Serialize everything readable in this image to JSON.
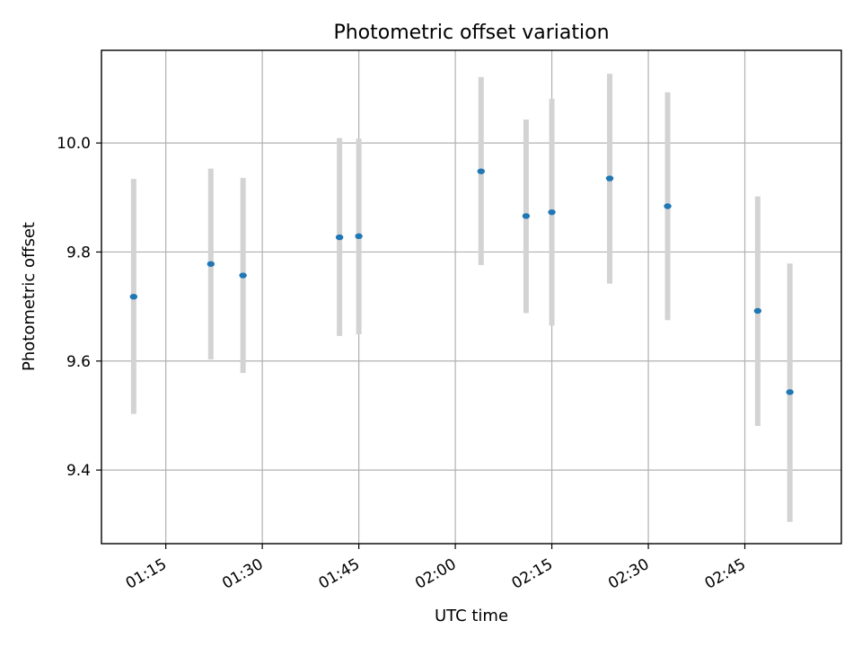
{
  "chart_data": {
    "type": "scatter",
    "title": "Photometric offset variation",
    "xlabel": "UTC time",
    "ylabel": "Photometric offset",
    "xlim": [
      "01:05",
      "03:00"
    ],
    "ylim": [
      9.265,
      10.17
    ],
    "xticks": [
      "01:15",
      "01:30",
      "01:45",
      "02:00",
      "02:15",
      "02:30",
      "02:45"
    ],
    "yticks": [
      9.4,
      9.6,
      9.8,
      10.0
    ],
    "ytick_labels": [
      "9.4",
      "9.6",
      "9.8",
      "10.0"
    ],
    "grid": true,
    "error_bar_color": "#d3d3d3",
    "marker_color": "#1f77b4",
    "points": [
      {
        "x": "01:10",
        "y": 9.718,
        "ylow": 9.503,
        "yhigh": 9.934
      },
      {
        "x": "01:22",
        "y": 9.778,
        "ylow": 9.603,
        "yhigh": 9.953
      },
      {
        "x": "01:27",
        "y": 9.757,
        "ylow": 9.578,
        "yhigh": 9.936
      },
      {
        "x": "01:42",
        "y": 9.827,
        "ylow": 9.646,
        "yhigh": 10.009
      },
      {
        "x": "01:45",
        "y": 9.829,
        "ylow": 9.649,
        "yhigh": 10.008
      },
      {
        "x": "02:04",
        "y": 9.948,
        "ylow": 9.776,
        "yhigh": 10.121
      },
      {
        "x": "02:11",
        "y": 9.866,
        "ylow": 9.688,
        "yhigh": 10.043
      },
      {
        "x": "02:15",
        "y": 9.873,
        "ylow": 9.665,
        "yhigh": 10.081
      },
      {
        "x": "02:24",
        "y": 9.935,
        "ylow": 9.742,
        "yhigh": 10.127
      },
      {
        "x": "02:33",
        "y": 9.884,
        "ylow": 9.675,
        "yhigh": 10.093
      },
      {
        "x": "02:47",
        "y": 9.692,
        "ylow": 9.481,
        "yhigh": 9.902
      },
      {
        "x": "02:52",
        "y": 9.543,
        "ylow": 9.305,
        "yhigh": 9.779
      }
    ]
  }
}
